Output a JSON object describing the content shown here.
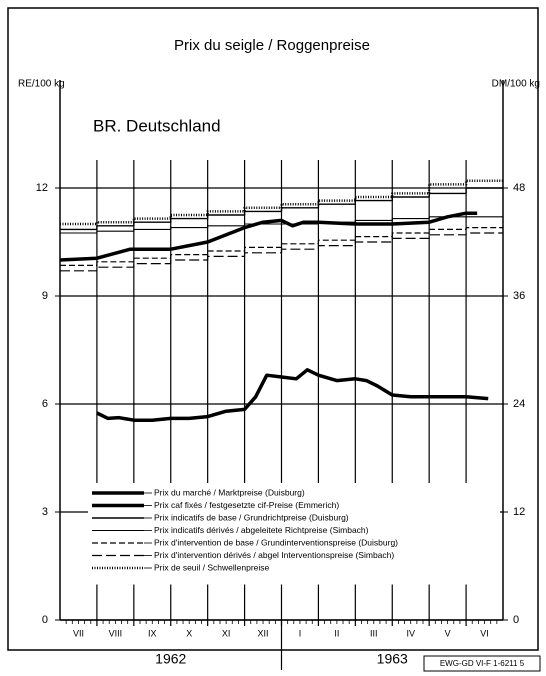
{
  "chart_data": {
    "type": "line",
    "title": "Prix du seigle / Roggenpreise",
    "subtitle": "BR. Deutschland",
    "ylabel": "RE/100 kg",
    "y2label": "DM/100 kg",
    "footer": "EWG-GD VI-F 1-6211 5",
    "categories": [
      "VII",
      "VIII",
      "IX",
      "X",
      "XI",
      "XII",
      "I",
      "II",
      "III",
      "IV",
      "V",
      "VI"
    ],
    "years": [
      "1962",
      "1963"
    ],
    "xlim": [
      0,
      12
    ],
    "ylim": [
      0,
      15
    ],
    "yticks": [
      0,
      3,
      6,
      9,
      12
    ],
    "y2lim": [
      0,
      60
    ],
    "y2ticks": [
      0,
      12,
      24,
      36,
      48
    ],
    "grid": true,
    "series": [
      {
        "name": "Prix du marché / Marktpreise (Duisburg)",
        "color": "#000000",
        "style": "solid",
        "step": false,
        "x": [
          0,
          1,
          1.9,
          3,
          4,
          5,
          5.5,
          6,
          6.3,
          6.6,
          7,
          8,
          9,
          10,
          10.5,
          11,
          11.3
        ],
        "values": [
          10.0,
          10.05,
          10.3,
          10.3,
          10.5,
          10.9,
          11.05,
          11.1,
          10.95,
          11.05,
          11.05,
          11.0,
          11.0,
          11.05,
          11.2,
          11.3,
          11.3
        ]
      },
      {
        "name": "Prix caf fixés / festgesetzte cif-Preise (Emmerich)",
        "color": "#000000",
        "style": "solid",
        "step": false,
        "x": [
          1.0,
          1.3,
          1.6,
          2,
          2.5,
          3,
          3.5,
          4,
          4.5,
          5,
          5.3,
          5.6,
          6,
          6.4,
          6.7,
          7,
          7.5,
          8,
          8.3,
          8.6,
          9,
          9.5,
          10,
          10.5,
          11,
          11.6
        ],
        "values": [
          5.75,
          5.6,
          5.62,
          5.55,
          5.55,
          5.6,
          5.6,
          5.65,
          5.8,
          5.85,
          6.2,
          6.8,
          6.75,
          6.7,
          6.95,
          6.8,
          6.65,
          6.7,
          6.65,
          6.5,
          6.25,
          6.2,
          6.2,
          6.2,
          6.2,
          6.15
        ]
      },
      {
        "name": "Prix indicatifs de base / Grundrichtpreise (Duisburg)",
        "color": "#000000",
        "style": "solid",
        "step": true,
        "x": [
          0,
          1,
          2,
          3,
          4,
          5,
          6,
          7,
          8,
          9,
          10,
          11
        ],
        "values": [
          10.85,
          10.95,
          11.05,
          11.15,
          11.25,
          11.35,
          11.45,
          11.55,
          11.65,
          11.75,
          11.85,
          12.0
        ]
      },
      {
        "name": "Prix indicatifs dérivés / abgeleitete Richtpreise (Simbach)",
        "color": "#000000",
        "style": "solid",
        "step": true,
        "x": [
          0,
          1,
          2,
          3,
          4,
          5,
          6,
          7,
          8,
          9,
          10,
          11
        ],
        "values": [
          10.75,
          10.8,
          10.85,
          10.9,
          10.95,
          11.0,
          11.0,
          11.05,
          11.1,
          11.15,
          11.2,
          11.2
        ]
      },
      {
        "name": "Prix d'intervention de base / Grundinterventionspreise (Duisburg)",
        "color": "#000000",
        "style": "dashed",
        "step": true,
        "x": [
          0,
          1,
          2,
          3,
          4,
          5,
          6,
          7,
          8,
          9,
          10,
          11
        ],
        "values": [
          9.85,
          9.95,
          10.05,
          10.15,
          10.25,
          10.35,
          10.45,
          10.55,
          10.65,
          10.75,
          10.85,
          10.9
        ]
      },
      {
        "name": "Prix d'intervention dérivés / abgel Interventionspreise (Simbach)",
        "color": "#000000",
        "style": "longdash",
        "step": true,
        "x": [
          0,
          1,
          2,
          3,
          4,
          5,
          6,
          7,
          8,
          9,
          10,
          11
        ],
        "values": [
          9.7,
          9.8,
          9.9,
          10.0,
          10.1,
          10.2,
          10.3,
          10.4,
          10.5,
          10.6,
          10.7,
          10.75
        ]
      },
      {
        "name": "Prix de seuil / Schwellenpreise",
        "color": "#000000",
        "style": "dotted",
        "step": true,
        "x": [
          0,
          1,
          2,
          3,
          4,
          5,
          6,
          7,
          8,
          9,
          10,
          11
        ],
        "values": [
          11.0,
          11.05,
          11.15,
          11.25,
          11.35,
          11.45,
          11.55,
          11.65,
          11.75,
          11.85,
          12.1,
          12.2
        ]
      }
    ]
  }
}
